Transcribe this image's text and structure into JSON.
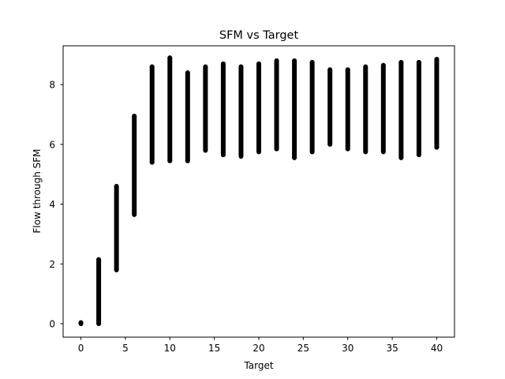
{
  "chart_data": {
    "type": "scatter",
    "title": "SFM vs Target",
    "xlabel": "Target",
    "ylabel": "Flow through SFM",
    "xlim": [
      -2,
      42
    ],
    "ylim": [
      -0.45,
      9.3
    ],
    "xticks": [
      0,
      5,
      10,
      15,
      20,
      25,
      30,
      35,
      40
    ],
    "yticks": [
      0,
      2,
      4,
      6,
      8
    ],
    "grid": false,
    "legend": "none",
    "marker_color": "#000000",
    "series": [
      {
        "columns": [
          {
            "x": 0,
            "y_min": 0.0,
            "y_max": 0.04
          },
          {
            "x": 2,
            "y_min": 0.0,
            "y_max": 2.15
          },
          {
            "x": 4,
            "y_min": 1.8,
            "y_max": 4.6
          },
          {
            "x": 6,
            "y_min": 3.65,
            "y_max": 6.95
          },
          {
            "x": 8,
            "y_min": 5.4,
            "y_max": 8.6
          },
          {
            "x": 10,
            "y_min": 5.45,
            "y_max": 8.9
          },
          {
            "x": 12,
            "y_min": 5.45,
            "y_max": 8.4
          },
          {
            "x": 14,
            "y_min": 5.8,
            "y_max": 8.6
          },
          {
            "x": 16,
            "y_min": 5.65,
            "y_max": 8.7
          },
          {
            "x": 18,
            "y_min": 5.6,
            "y_max": 8.6
          },
          {
            "x": 20,
            "y_min": 5.75,
            "y_max": 8.7
          },
          {
            "x": 22,
            "y_min": 5.85,
            "y_max": 8.8
          },
          {
            "x": 24,
            "y_min": 5.55,
            "y_max": 8.8
          },
          {
            "x": 26,
            "y_min": 5.75,
            "y_max": 8.75
          },
          {
            "x": 28,
            "y_min": 6.0,
            "y_max": 8.5
          },
          {
            "x": 30,
            "y_min": 5.85,
            "y_max": 8.5
          },
          {
            "x": 32,
            "y_min": 5.75,
            "y_max": 8.6
          },
          {
            "x": 34,
            "y_min": 5.75,
            "y_max": 8.65
          },
          {
            "x": 36,
            "y_min": 5.55,
            "y_max": 8.75
          },
          {
            "x": 38,
            "y_min": 5.65,
            "y_max": 8.75
          },
          {
            "x": 40,
            "y_min": 5.9,
            "y_max": 8.85
          }
        ]
      }
    ]
  }
}
